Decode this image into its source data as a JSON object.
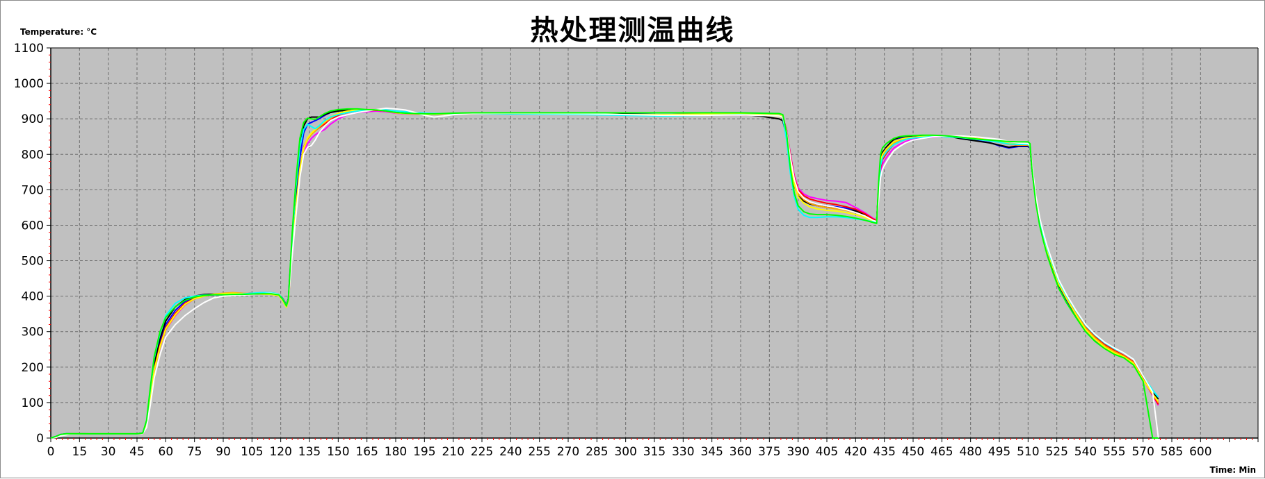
{
  "chart_data": {
    "type": "line",
    "title": "热处理测温曲线",
    "ylabel": "Temperature: °C",
    "xlabel": "Time: Min",
    "xlim": [
      0,
      630
    ],
    "ylim": [
      0,
      1100
    ],
    "x_ticks": [
      0,
      15,
      30,
      45,
      60,
      75,
      90,
      105,
      120,
      135,
      150,
      165,
      180,
      195,
      210,
      225,
      240,
      255,
      270,
      285,
      300,
      315,
      330,
      345,
      360,
      375,
      390,
      405,
      420,
      435,
      450,
      465,
      480,
      495,
      510,
      525,
      540,
      555,
      570,
      585,
      600
    ],
    "y_ticks": [
      0,
      100,
      200,
      300,
      400,
      500,
      600,
      700,
      800,
      900,
      1000,
      1100
    ],
    "grid": true,
    "plot_background": "#c0c0c0",
    "x": [
      0,
      3,
      5,
      8,
      10,
      20,
      30,
      40,
      45,
      48,
      50,
      52,
      54,
      57,
      60,
      65,
      70,
      75,
      80,
      85,
      90,
      95,
      100,
      105,
      110,
      115,
      119,
      121,
      123,
      124,
      126,
      128,
      130,
      132,
      134,
      136,
      138,
      140,
      143,
      146,
      150,
      155,
      160,
      165,
      170,
      175,
      180,
      185,
      190,
      195,
      200,
      205,
      210,
      220,
      240,
      260,
      280,
      300,
      320,
      340,
      360,
      370,
      380,
      382,
      384,
      386,
      388,
      390,
      393,
      396,
      400,
      405,
      410,
      415,
      420,
      425,
      429,
      431,
      432,
      433,
      434,
      436,
      438,
      440,
      443,
      446,
      450,
      455,
      460,
      465,
      470,
      475,
      480,
      485,
      490,
      495,
      500,
      505,
      510,
      511,
      512,
      514,
      516,
      518,
      520,
      523,
      526,
      530,
      535,
      540,
      545,
      550,
      555,
      560,
      565,
      570,
      575,
      578
    ],
    "series": [
      {
        "color": "#0000ff",
        "values": [
          0,
          5,
          10,
          12,
          12,
          12,
          12,
          12,
          12,
          14,
          40,
          120,
          200,
          270,
          320,
          360,
          385,
          395,
          400,
          404,
          404,
          405,
          405,
          407,
          408,
          408,
          405,
          392,
          372,
          392,
          550,
          680,
          790,
          860,
          885,
          890,
          895,
          900,
          910,
          918,
          922,
          925,
          925,
          923,
          925,
          924,
          918,
          916,
          915,
          914,
          914,
          915,
          915,
          916,
          916,
          915,
          914,
          913,
          912,
          912,
          912,
          911,
          910,
          905,
          860,
          780,
          720,
          690,
          675,
          665,
          660,
          655,
          652,
          648,
          642,
          632,
          618,
          612,
          700,
          780,
          800,
          815,
          826,
          836,
          844,
          848,
          850,
          852,
          853,
          853,
          850,
          846,
          840,
          837,
          833,
          824,
          818,
          822,
          822,
          818,
          760,
          670,
          610,
          565,
          525,
          475,
          430,
          390,
          345,
          305,
          275,
          255,
          240,
          228,
          210,
          165,
          125,
          105
        ]
      },
      {
        "color": "#000000",
        "values": [
          0,
          4,
          9,
          12,
          12,
          12,
          12,
          12,
          12,
          14,
          45,
          130,
          210,
          280,
          330,
          370,
          390,
          400,
          405,
          406,
          405,
          406,
          406,
          408,
          408,
          408,
          405,
          394,
          375,
          395,
          560,
          700,
          820,
          880,
          900,
          905,
          905,
          905,
          912,
          918,
          922,
          924,
          924,
          922,
          924,
          922,
          918,
          916,
          915,
          914,
          914,
          915,
          915,
          916,
          916,
          915,
          914,
          913,
          912,
          913,
          913,
          908,
          900,
          895,
          850,
          770,
          712,
          682,
          668,
          660,
          655,
          650,
          648,
          644,
          640,
          630,
          616,
          612,
          705,
          785,
          805,
          820,
          832,
          842,
          848,
          851,
          852,
          853,
          853,
          852,
          849,
          844,
          840,
          836,
          832,
          826,
          820,
          824,
          824,
          820,
          762,
          672,
          612,
          567,
          528,
          478,
          432,
          392,
          348,
          308,
          280,
          258,
          242,
          230,
          212,
          168,
          128,
          110
        ]
      },
      {
        "color": "#ff00ff",
        "values": [
          0,
          3,
          8,
          11,
          12,
          12,
          12,
          12,
          12,
          13,
          35,
          110,
          190,
          255,
          305,
          345,
          375,
          392,
          400,
          404,
          404,
          405,
          405,
          406,
          406,
          406,
          403,
          388,
          370,
          388,
          520,
          640,
          740,
          800,
          830,
          845,
          855,
          862,
          870,
          885,
          900,
          912,
          918,
          920,
          922,
          920,
          916,
          914,
          913,
          913,
          913,
          914,
          914,
          915,
          915,
          914,
          913,
          912,
          911,
          911,
          911,
          910,
          908,
          905,
          870,
          800,
          740,
          705,
          688,
          680,
          675,
          670,
          668,
          664,
          650,
          635,
          620,
          614,
          680,
          750,
          772,
          790,
          805,
          818,
          828,
          836,
          842,
          846,
          848,
          850,
          850,
          848,
          845,
          842,
          838,
          834,
          828,
          826,
          826,
          822,
          765,
          676,
          615,
          570,
          532,
          484,
          438,
          398,
          352,
          310,
          283,
          262,
          245,
          232,
          214,
          165,
          120,
          92
        ]
      },
      {
        "color": "#ff0000",
        "values": [
          0,
          3,
          8,
          11,
          12,
          12,
          12,
          12,
          12,
          13,
          38,
          115,
          195,
          262,
          312,
          352,
          380,
          394,
          401,
          405,
          406,
          407,
          406,
          406,
          406,
          406,
          403,
          389,
          371,
          389,
          530,
          655,
          760,
          820,
          845,
          858,
          866,
          875,
          885,
          897,
          910,
          918,
          922,
          923,
          924,
          922,
          917,
          915,
          914,
          913,
          913,
          914,
          914,
          915,
          915,
          914,
          913,
          912,
          911,
          911,
          911,
          910,
          908,
          905,
          868,
          796,
          735,
          700,
          683,
          674,
          668,
          662,
          658,
          652,
          645,
          632,
          618,
          613,
          690,
          762,
          785,
          802,
          816,
          828,
          836,
          842,
          846,
          849,
          850,
          851,
          851,
          849,
          846,
          843,
          839,
          835,
          829,
          827,
          827,
          823,
          766,
          677,
          616,
          571,
          533,
          485,
          440,
          400,
          354,
          312,
          285,
          264,
          247,
          233,
          215,
          166,
          122,
          95
        ]
      },
      {
        "color": "#ffa500",
        "values": [
          0,
          3,
          7,
          10,
          12,
          12,
          12,
          12,
          12,
          13,
          36,
          112,
          190,
          256,
          306,
          347,
          376,
          392,
          400,
          406,
          408,
          410,
          408,
          407,
          406,
          405,
          402,
          387,
          369,
          387,
          525,
          650,
          755,
          815,
          842,
          856,
          866,
          876,
          890,
          902,
          915,
          922,
          926,
          926,
          926,
          923,
          918,
          915,
          914,
          913,
          913,
          914,
          914,
          915,
          915,
          914,
          913,
          912,
          912,
          913,
          913,
          910,
          907,
          903,
          860,
          785,
          725,
          690,
          672,
          662,
          655,
          650,
          646,
          642,
          636,
          626,
          614,
          610,
          695,
          770,
          792,
          808,
          820,
          832,
          840,
          845,
          848,
          850,
          851,
          851,
          850,
          848,
          845,
          842,
          838,
          834,
          828,
          826,
          826,
          822,
          764,
          675,
          614,
          569,
          531,
          483,
          437,
          397,
          351,
          310,
          282,
          260,
          244,
          231,
          213,
          166,
          124,
          100
        ]
      },
      {
        "color": "#ffff00",
        "values": [
          0,
          3,
          7,
          10,
          12,
          12,
          12,
          12,
          12,
          13,
          36,
          112,
          192,
          258,
          308,
          348,
          377,
          393,
          400,
          405,
          407,
          408,
          407,
          406,
          406,
          405,
          402,
          387,
          369,
          387,
          528,
          652,
          758,
          818,
          846,
          860,
          870,
          880,
          893,
          905,
          916,
          922,
          925,
          925,
          925,
          922,
          917,
          915,
          914,
          913,
          913,
          914,
          914,
          915,
          915,
          914,
          913,
          912,
          912,
          913,
          914,
          912,
          910,
          906,
          855,
          775,
          715,
          680,
          662,
          652,
          646,
          642,
          640,
          636,
          630,
          622,
          612,
          609,
          700,
          778,
          800,
          815,
          826,
          836,
          842,
          846,
          848,
          850,
          851,
          851,
          850,
          848,
          846,
          843,
          840,
          836,
          830,
          828,
          828,
          824,
          764,
          674,
          612,
          567,
          528,
          480,
          434,
          394,
          348,
          306,
          278,
          256,
          240,
          228,
          210,
          164,
          124,
          104
        ]
      },
      {
        "color": "#00ffff",
        "values": [
          0,
          4,
          9,
          12,
          12,
          12,
          12,
          12,
          12,
          14,
          48,
          140,
          225,
          295,
          345,
          380,
          395,
          400,
          403,
          404,
          404,
          405,
          406,
          408,
          410,
          410,
          406,
          393,
          373,
          393,
          565,
          710,
          820,
          870,
          885,
          878,
          872,
          880,
          895,
          905,
          912,
          918,
          922,
          924,
          926,
          925,
          922,
          920,
          918,
          916,
          915,
          915,
          915,
          915,
          914,
          913,
          912,
          910,
          908,
          910,
          912,
          910,
          908,
          904,
          840,
          745,
          680,
          645,
          628,
          622,
          622,
          624,
          624,
          622,
          618,
          614,
          610,
          608,
          690,
          768,
          790,
          806,
          818,
          828,
          836,
          842,
          846,
          848,
          850,
          850,
          849,
          847,
          844,
          841,
          838,
          834,
          829,
          828,
          828,
          824,
          768,
          678,
          616,
          572,
          535,
          488,
          442,
          402,
          358,
          318,
          290,
          268,
          252,
          240,
          222,
          175,
          135,
          115
        ]
      },
      {
        "color": "#ffffff",
        "values": [
          0,
          2,
          6,
          9,
          11,
          12,
          12,
          12,
          12,
          13,
          30,
          95,
          170,
          235,
          285,
          320,
          345,
          365,
          382,
          395,
          400,
          402,
          403,
          405,
          407,
          408,
          405,
          390,
          372,
          390,
          515,
          630,
          735,
          800,
          820,
          825,
          840,
          860,
          880,
          895,
          905,
          912,
          918,
          922,
          926,
          930,
          928,
          925,
          918,
          910,
          905,
          908,
          912,
          915,
          916,
          915,
          914,
          912,
          910,
          910,
          911,
          910,
          908,
          904,
          865,
          790,
          730,
          695,
          676,
          666,
          660,
          655,
          650,
          644,
          636,
          626,
          614,
          610,
          670,
          735,
          758,
          778,
          795,
          810,
          822,
          832,
          840,
          845,
          849,
          851,
          852,
          852,
          850,
          848,
          845,
          842,
          836,
          832,
          830,
          826,
          772,
          684,
          622,
          578,
          540,
          492,
          446,
          405,
          360,
          320,
          292,
          270,
          254,
          240,
          222,
          175,
          130,
          0
        ]
      },
      {
        "color": "#00ff00",
        "values": [
          0,
          5,
          10,
          12,
          12,
          12,
          12,
          12,
          12,
          14,
          50,
          145,
          230,
          300,
          340,
          370,
          388,
          398,
          402,
          404,
          404,
          405,
          405,
          406,
          407,
          407,
          404,
          391,
          372,
          391,
          580,
          730,
          845,
          890,
          902,
          900,
          898,
          905,
          915,
          922,
          926,
          928,
          928,
          926,
          925,
          922,
          918,
          916,
          915,
          914,
          914,
          915,
          916,
          917,
          917,
          917,
          917,
          917,
          917,
          917,
          917,
          916,
          915,
          912,
          860,
          760,
          690,
          655,
          638,
          632,
          630,
          630,
          628,
          625,
          620,
          614,
          608,
          605,
          720,
          800,
          818,
          830,
          838,
          845,
          850,
          852,
          853,
          854,
          854,
          853,
          851,
          848,
          845,
          842,
          840,
          838,
          836,
          835,
          835,
          830,
          760,
          664,
          600,
          555,
          515,
          466,
          422,
          382,
          340,
          300,
          272,
          252,
          236,
          226,
          206,
          160,
          0,
          0
        ]
      }
    ]
  }
}
